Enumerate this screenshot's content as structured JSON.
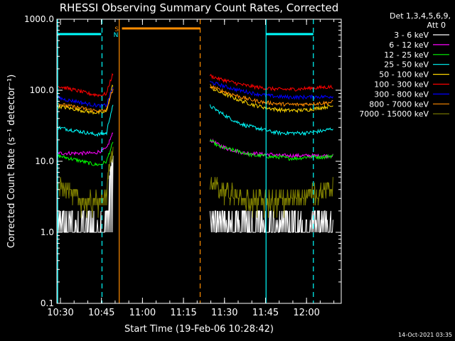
{
  "chart_data": {
    "type": "line",
    "title": "RHESSI Observing Summary Count Rates, Corrected",
    "xlabel": "Start Time (19-Feb-06 10:28:42)",
    "ylabel": "Corrected Count Rate (s⁻¹ detector⁻¹)",
    "ylog": true,
    "ylim": [
      0.1,
      1000
    ],
    "xlim_minutes": [
      0,
      104
    ],
    "y_ticks": [
      {
        "value": 0.1,
        "label": "0.1"
      },
      {
        "value": 1,
        "label": "1.0"
      },
      {
        "value": 10,
        "label": "10.0"
      },
      {
        "value": 100,
        "label": "100.0"
      },
      {
        "value": 1000,
        "label": "1000.0"
      }
    ],
    "x_ticks": [
      {
        "value": 1.3,
        "label": "10:30"
      },
      {
        "value": 16.3,
        "label": "10:45"
      },
      {
        "value": 31.3,
        "label": "11:00"
      },
      {
        "value": 46.3,
        "label": "11:15"
      },
      {
        "value": 61.3,
        "label": "11:30"
      },
      {
        "value": 76.3,
        "label": "11:45"
      },
      {
        "value": 91.3,
        "label": "12:00"
      }
    ],
    "legend": {
      "header": [
        "Det 1,3,4,5,6,9,",
        "Att 0"
      ],
      "position": "right"
    },
    "series": [
      {
        "name": "3 - 6 keV",
        "color": "#ffffff",
        "seg1": [
          2,
          2,
          1.5,
          1.5,
          1,
          1.5,
          1.5,
          1.5,
          2,
          12
        ],
        "seg2": [
          1.5,
          1.5,
          1.5,
          1.5,
          1.5,
          1.5,
          1.5,
          1.5,
          1.5,
          1.5,
          1.5,
          1.5,
          1.5,
          1.5,
          1.5
        ]
      },
      {
        "name": "6 - 12 keV",
        "color": "#ff00ff",
        "seg1": [
          13,
          13,
          13,
          13,
          13,
          13,
          13,
          14,
          15,
          25
        ],
        "seg2": [
          20,
          17,
          15,
          14,
          13,
          13,
          12.5,
          12.5,
          12,
          12,
          12,
          12,
          12,
          12,
          12
        ]
      },
      {
        "name": "12 - 25 keV",
        "color": "#00ff00",
        "seg1": [
          12,
          11.5,
          11,
          10.5,
          10,
          9.5,
          9,
          9,
          10,
          18
        ],
        "seg2": [
          20,
          16,
          15,
          14,
          13,
          12,
          12,
          11.5,
          11.5,
          11,
          11,
          11.5,
          11.5,
          11.5,
          12
        ]
      },
      {
        "name": "25 - 50 keV",
        "color": "#00ffff",
        "seg1": [
          30,
          29,
          28,
          27,
          26,
          25,
          24,
          24,
          25,
          60
        ],
        "seg2": [
          60,
          50,
          42,
          36,
          32,
          30,
          28,
          26,
          25,
          25,
          25,
          25,
          26,
          27,
          29
        ]
      },
      {
        "name": "50 - 100 keV",
        "color": "#ffd700",
        "seg1": [
          60,
          58,
          56,
          54,
          52,
          50,
          49,
          48,
          50,
          120
        ],
        "seg2": [
          110,
          95,
          85,
          75,
          68,
          62,
          58,
          55,
          53,
          52,
          52,
          53,
          55,
          58,
          60
        ]
      },
      {
        "name": "100 - 300 keV",
        "color": "#ff0000",
        "seg1": [
          115,
          110,
          105,
          100,
          95,
          90,
          87,
          85,
          90,
          170
        ],
        "seg2": [
          160,
          145,
          135,
          125,
          117,
          112,
          108,
          105,
          103,
          103,
          104,
          106,
          108,
          110,
          112
        ]
      },
      {
        "name": "300 - 800 keV",
        "color": "#0000ff",
        "seg1": [
          80,
          75,
          72,
          70,
          67,
          64,
          62,
          60,
          62,
          110
        ],
        "seg2": [
          130,
          120,
          110,
          102,
          96,
          90,
          86,
          83,
          81,
          80,
          80,
          80,
          81,
          81,
          82
        ]
      },
      {
        "name": "800 - 7000 keV",
        "color": "#ff8c00",
        "seg1": [
          65,
          62,
          60,
          58,
          56,
          54,
          52,
          51,
          53,
          100
        ],
        "seg2": [
          115,
          102,
          92,
          84,
          77,
          72,
          68,
          66,
          64,
          63,
          63,
          64,
          65,
          66,
          68
        ]
      },
      {
        "name": "7000 - 15000 keV",
        "color": "#808000",
        "seg1": [
          5,
          4.5,
          4,
          3.5,
          3,
          3,
          3,
          3,
          3.5,
          15
        ],
        "seg2": [
          5,
          4.5,
          4,
          3.5,
          3,
          3,
          3,
          3,
          3,
          3,
          3.5,
          3.5,
          4,
          4,
          4.5
        ]
      }
    ],
    "segment_ranges_minutes": {
      "seg1": [
        0,
        20.5
      ],
      "seg2": [
        56,
        101
      ]
    },
    "markers": [
      {
        "kind": "solid-vertical",
        "color": "#00ffff",
        "x": 0.3
      },
      {
        "kind": "dashed-vertical",
        "color": "#00ffff",
        "x": 16.5
      },
      {
        "kind": "solid-vertical",
        "color": "#00ffff",
        "x": 76.5
      },
      {
        "kind": "dashed-vertical",
        "color": "#00ffff",
        "x": 93.8
      },
      {
        "kind": "solid-vertical",
        "color": "#ff8c00",
        "x": 22.8
      },
      {
        "kind": "dashed-vertical",
        "color": "#ff8c00",
        "x": 52.4
      }
    ],
    "night_bars": [
      {
        "color": "#00ffff",
        "x": [
          0,
          16.2
        ]
      },
      {
        "color": "#00ffff",
        "x": [
          76.5,
          93.8
        ]
      }
    ],
    "saa_bar": {
      "color": "#ff8c00",
      "x": [
        23.8,
        52.4
      ]
    },
    "flag_letters": [
      {
        "text": "S",
        "color": "#ff8c00",
        "x": 19.8
      },
      {
        "text": "N",
        "color": "#00ffff",
        "x": 19.5
      }
    ]
  },
  "footer": {
    "timestamp": "14-Oct-2021 03:35"
  }
}
